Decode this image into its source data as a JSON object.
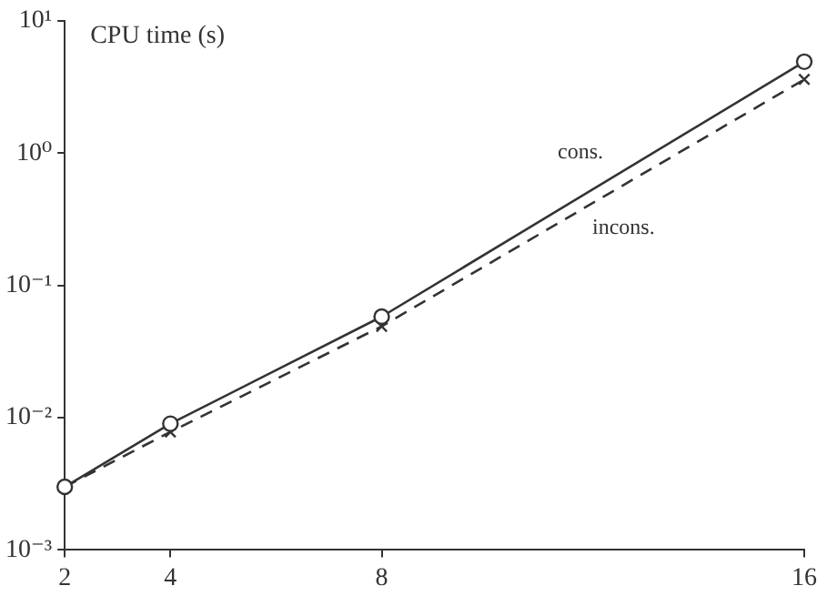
{
  "chart_data": {
    "type": "line",
    "ylabel": "CPU time (s)",
    "x": [
      2,
      4,
      8,
      16
    ],
    "series": [
      {
        "name": "cons.",
        "color": "#333333",
        "values": [
          0.003,
          0.009,
          0.058,
          4.9
        ],
        "marker": "circle",
        "line_style": "solid"
      },
      {
        "name": "incons.",
        "color": "#333333",
        "values": [
          0.003,
          0.0078,
          0.049,
          3.6
        ],
        "marker": "cross",
        "line_style": "dashed"
      }
    ],
    "xlim": [
      2,
      16
    ],
    "xticks": [
      2,
      4,
      8,
      16
    ],
    "log": "y",
    "ylim": [
      0.001,
      10
    ],
    "yticks": [
      {
        "value": 0.001,
        "label": "10⁻³"
      },
      {
        "value": 0.01,
        "label": "10⁻²"
      },
      {
        "value": 0.1,
        "label": "10⁻¹"
      },
      {
        "value": 1,
        "label": "10⁰"
      },
      {
        "value": 10,
        "label": "10¹"
      }
    ],
    "grid": false,
    "legend": false
  }
}
